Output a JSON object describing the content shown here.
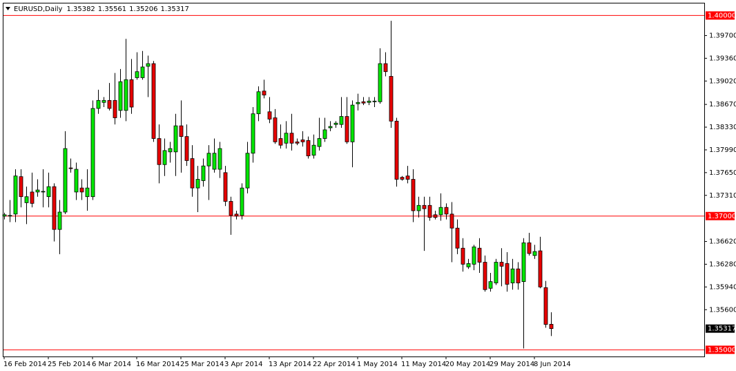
{
  "chart_data": {
    "type": "candlestick",
    "header": {
      "symbol": "EURUSD,Daily",
      "ohlc": [
        1.35382,
        1.35561,
        1.35206,
        1.35317
      ]
    },
    "categories": [
      "16 Feb 2014",
      null,
      null,
      null,
      null,
      null,
      null,
      null,
      "25 Feb 2014",
      null,
      null,
      null,
      null,
      null,
      null,
      null,
      "6 Mar 2014",
      null,
      null,
      null,
      null,
      null,
      null,
      null,
      "16 Mar 2014",
      null,
      null,
      null,
      null,
      null,
      null,
      null,
      "25 Mar 2014",
      null,
      null,
      null,
      null,
      null,
      null,
      null,
      "3 Apr 2014",
      null,
      null,
      null,
      null,
      null,
      null,
      null,
      "13 Apr 2014",
      null,
      null,
      null,
      null,
      null,
      null,
      null,
      "22 Apr 2014",
      null,
      null,
      null,
      null,
      null,
      null,
      null,
      "1 May 2014",
      null,
      null,
      null,
      null,
      null,
      null,
      null,
      "11 May 2014",
      null,
      null,
      null,
      null,
      null,
      null,
      null,
      "20 May 2014",
      null,
      null,
      null,
      null,
      null,
      null,
      null,
      "29 May 2014",
      null,
      null,
      null,
      null,
      null,
      null,
      null,
      "8 Jun 2014",
      null,
      null,
      null
    ],
    "open": [
      1.37,
      1.37,
      1.3703,
      1.3759,
      1.372,
      1.3736,
      1.3736,
      1.3736,
      1.3729,
      1.3744,
      1.368,
      1.3706,
      1.3772,
      1.3736,
      1.3742,
      1.3729,
      1.3729,
      1.3861,
      1.387,
      1.3873,
      1.3873,
      1.3858,
      1.3858,
      1.3904,
      1.3907,
      1.3907,
      1.3924,
      1.3928,
      1.3816,
      1.3777,
      1.3796,
      1.3796,
      1.3835,
      1.3819,
      1.3786,
      1.3742,
      1.3753,
      1.3775,
      1.377,
      1.377,
      1.3765,
      1.3722,
      1.3703,
      1.3701,
      1.3742,
      1.3794,
      1.3853,
      1.3887,
      1.3856,
      1.3847,
      1.3816,
      1.3809,
      1.3824,
      1.3811,
      1.3814,
      1.3813,
      1.3791,
      1.3804,
      1.3816,
      1.3832,
      1.3837,
      1.3837,
      1.3849,
      1.3811,
      1.3868,
      1.3871,
      1.387,
      1.3871,
      1.3871,
      1.3928,
      1.3909,
      1.3842,
      1.3758,
      1.376,
      1.3755,
      1.3708,
      1.3716,
      1.3716,
      1.3702,
      1.3702,
      1.3713,
      1.3703,
      1.3682,
      1.3652,
      1.3624,
      1.3628,
      1.3652,
      1.3631,
      1.3592,
      1.36,
      1.3631,
      1.3629,
      1.36,
      1.3621,
      1.3602,
      1.366,
      1.3641,
      1.3648,
      1.3593,
      1.35382
    ],
    "high": [
      1.3705,
      1.3724,
      1.377,
      1.377,
      1.3744,
      1.3765,
      1.3755,
      1.377,
      1.3765,
      1.3749,
      1.3724,
      1.3827,
      1.3786,
      1.378,
      1.3755,
      1.377,
      1.3873,
      1.3889,
      1.3878,
      1.3899,
      1.3914,
      1.392,
      1.3965,
      1.3935,
      1.3945,
      1.3947,
      1.394,
      1.3932,
      1.3837,
      1.3816,
      1.3811,
      1.3853,
      1.3873,
      1.3837,
      1.3806,
      1.3775,
      1.3786,
      1.3806,
      1.3816,
      1.3811,
      1.3775,
      1.3729,
      1.3708,
      1.3749,
      1.3811,
      1.3863,
      1.3894,
      1.3904,
      1.3878,
      1.386,
      1.3837,
      1.3842,
      1.3853,
      1.3816,
      1.3827,
      1.3819,
      1.3822,
      1.3847,
      1.3847,
      1.3842,
      1.3842,
      1.3878,
      1.3878,
      1.3873,
      1.3883,
      1.3878,
      1.3878,
      1.3878,
      1.3951,
      1.3945,
      1.3992,
      1.3847,
      1.376,
      1.3775,
      1.377,
      1.3729,
      1.3729,
      1.3729,
      1.3708,
      1.3734,
      1.3719,
      1.3721,
      1.3695,
      1.3667,
      1.3636,
      1.3657,
      1.3667,
      1.3641,
      1.3615,
      1.3636,
      1.3652,
      1.3646,
      1.3636,
      1.3631,
      1.3667,
      1.3675,
      1.3657,
      1.3669,
      1.3603,
      1.35561
    ],
    "low": [
      1.3695,
      1.3691,
      1.3691,
      1.3713,
      1.3688,
      1.3713,
      1.3729,
      1.3713,
      1.3713,
      1.3662,
      1.3643,
      1.3703,
      1.3765,
      1.3724,
      1.3724,
      1.3708,
      1.3724,
      1.3853,
      1.3863,
      1.3858,
      1.3837,
      1.3847,
      1.3842,
      1.3853,
      1.3904,
      1.3904,
      1.3878,
      1.3811,
      1.3749,
      1.376,
      1.378,
      1.376,
      1.3765,
      1.3775,
      1.3729,
      1.3706,
      1.3744,
      1.3724,
      1.3765,
      1.3757,
      1.3715,
      1.3672,
      1.3695,
      1.3695,
      1.3734,
      1.378,
      1.3842,
      1.3876,
      1.3839,
      1.3808,
      1.3801,
      1.3801,
      1.3798,
      1.3806,
      1.3804,
      1.3786,
      1.3786,
      1.3798,
      1.3811,
      1.3827,
      1.3832,
      1.3832,
      1.3808,
      1.3773,
      1.3858,
      1.3866,
      1.3866,
      1.3863,
      1.3868,
      1.3909,
      1.3832,
      1.3744,
      1.3753,
      1.3749,
      1.3691,
      1.3698,
      1.3648,
      1.3693,
      1.3695,
      1.3693,
      1.3695,
      1.3631,
      1.3643,
      1.3617,
      1.3621,
      1.3619,
      1.3615,
      1.3587,
      1.3587,
      1.3597,
      1.3595,
      1.3587,
      1.359,
      1.359,
      1.3502,
      1.3641,
      1.3636,
      1.3592,
      1.3533,
      1.35206
    ],
    "close": [
      1.3702,
      1.3701,
      1.376,
      1.3729,
      1.3729,
      1.3719,
      1.3739,
      1.3737,
      1.3744,
      1.368,
      1.3706,
      1.3801,
      1.3771,
      1.377,
      1.3736,
      1.3742,
      1.3861,
      1.3873,
      1.3873,
      1.3861,
      1.3847,
      1.3901,
      1.3904,
      1.3863,
      1.3916,
      1.3923,
      1.3928,
      1.3816,
      1.3777,
      1.3798,
      1.3801,
      1.3835,
      1.3819,
      1.3783,
      1.3742,
      1.3755,
      1.3775,
      1.3794,
      1.3794,
      1.3801,
      1.3722,
      1.3701,
      1.37,
      1.3742,
      1.3794,
      1.3853,
      1.3886,
      1.3881,
      1.3845,
      1.3811,
      1.3806,
      1.3824,
      1.3809,
      1.3809,
      1.3811,
      1.379,
      1.3806,
      1.3816,
      1.3829,
      1.3834,
      1.3839,
      1.3849,
      1.3811,
      1.3866,
      1.387,
      1.3869,
      1.3872,
      1.3872,
      1.3928,
      1.3916,
      1.3842,
      1.3755,
      1.3755,
      1.3755,
      1.3708,
      1.3716,
      1.3711,
      1.3698,
      1.3698,
      1.3713,
      1.3703,
      1.3682,
      1.3652,
      1.3628,
      1.3629,
      1.3654,
      1.3631,
      1.359,
      1.3602,
      1.3631,
      1.3625,
      1.3598,
      1.3621,
      1.36,
      1.366,
      1.3644,
      1.3647,
      1.3594,
      1.3538,
      1.35317
    ],
    "up_color": "#00e600",
    "down_color": "#e60000",
    "ylim": [
      1.349,
      1.4018
    ],
    "yticks": [
      {
        "value": 1.397,
        "label": "1.39700"
      },
      {
        "value": 1.3936,
        "label": "1.39360"
      },
      {
        "value": 1.3902,
        "label": "1.39020"
      },
      {
        "value": 1.3867,
        "label": "1.38670"
      },
      {
        "value": 1.3833,
        "label": "1.38330"
      },
      {
        "value": 1.3799,
        "label": "1.37990"
      },
      {
        "value": 1.3765,
        "label": "1.37650"
      },
      {
        "value": 1.3731,
        "label": "1.37310"
      },
      {
        "value": 1.3662,
        "label": "1.36620"
      },
      {
        "value": 1.3628,
        "label": "1.36280"
      },
      {
        "value": 1.3594,
        "label": "1.35940"
      },
      {
        "value": 1.356,
        "label": "1.35600"
      }
    ],
    "levels": [
      {
        "value": 1.4,
        "label": "1.40000"
      },
      {
        "value": 1.37,
        "label": "1.37000"
      },
      {
        "value": 1.35,
        "label": "1.35000"
      }
    ],
    "level_color": "#ff0000",
    "current_price": 1.35317,
    "grid": false
  }
}
